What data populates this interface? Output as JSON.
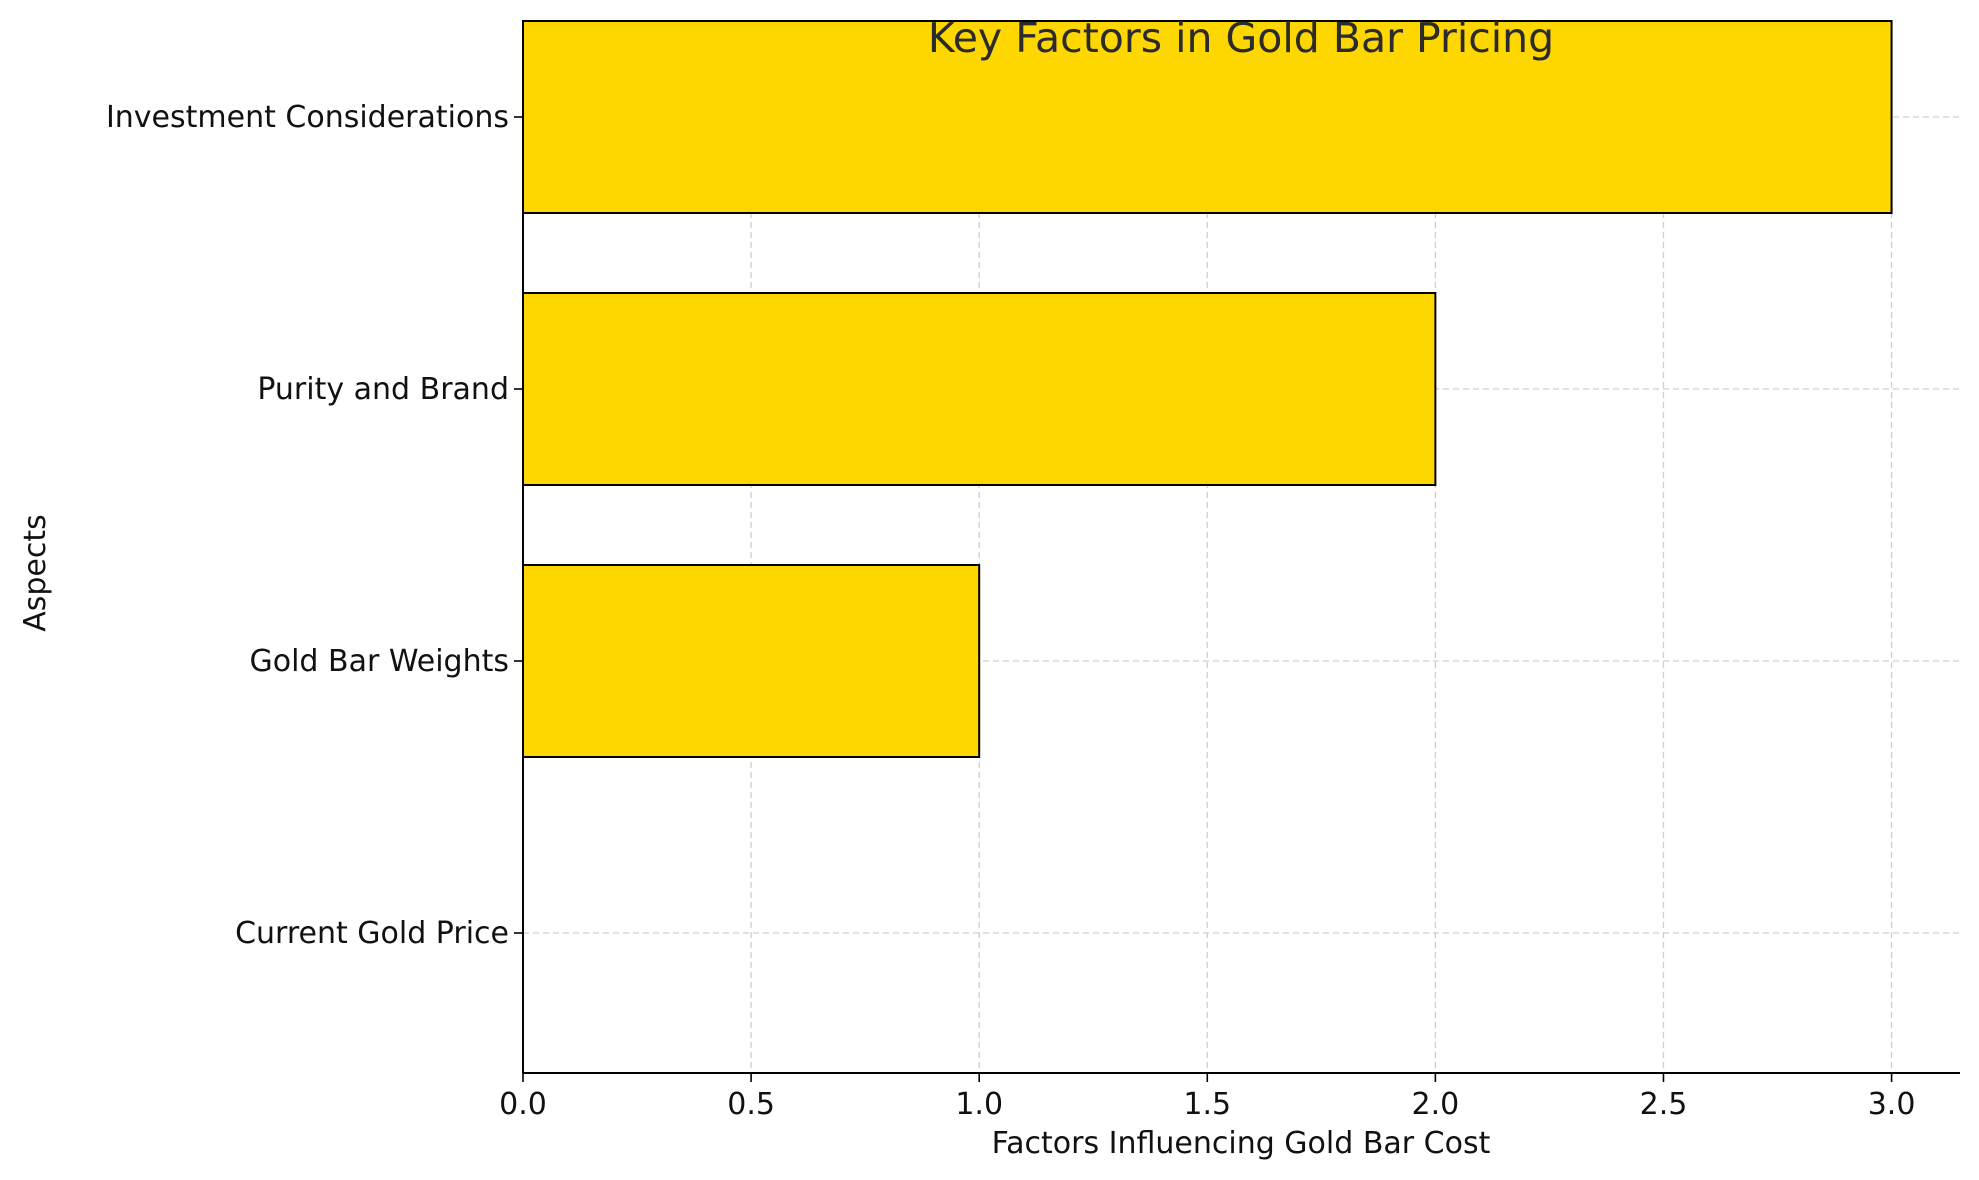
{
  "chart_data": {
    "type": "bar",
    "orientation": "horizontal",
    "title": "Key Factors in Gold Bar Pricing",
    "xlabel": "Factors Influencing Gold Bar Cost",
    "ylabel": "Aspects",
    "categories": [
      "Current Gold Price",
      "Gold Bar Weights",
      "Purity and Brand",
      "Investment Considerations"
    ],
    "values": [
      0,
      1,
      2,
      3
    ],
    "xlim": [
      0,
      3.15
    ],
    "xticks": [
      0.0,
      0.5,
      1.0,
      1.5,
      2.0,
      2.5,
      3.0
    ],
    "xtick_labels": [
      "0.0",
      "0.5",
      "1.0",
      "1.5",
      "2.0",
      "2.5",
      "3.0"
    ],
    "grid": true,
    "bar_color": "#FFD700",
    "edge_color": "#000000"
  }
}
